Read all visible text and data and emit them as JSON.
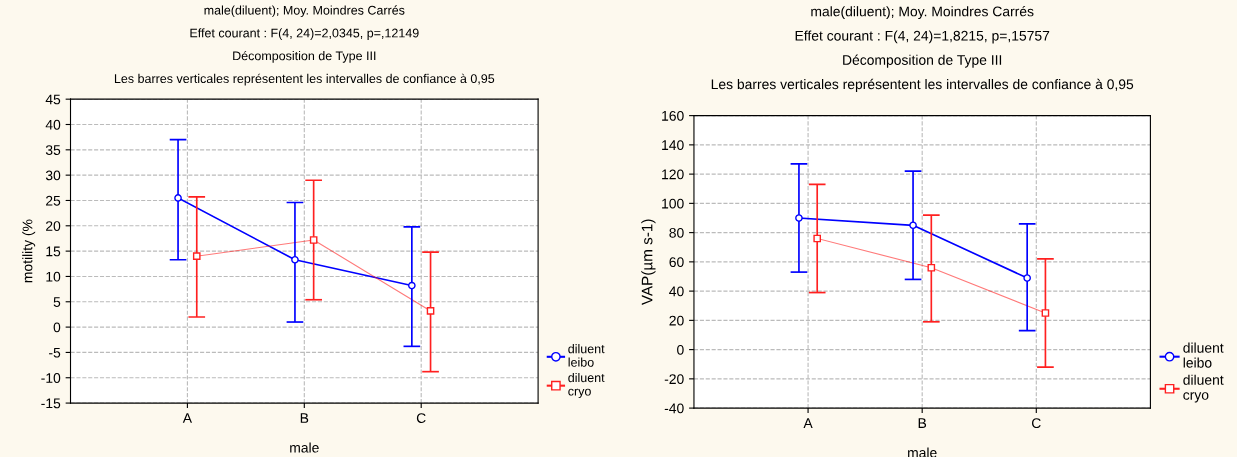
{
  "chart_data": [
    {
      "type": "line",
      "title": "male(diluent); Moy. Moindres Carrés",
      "subtitle": "Effet courant : F(4, 24)=2,0345, p=,12149",
      "annotations": [
        "Décomposition de Type III",
        "Les barres verticales représentent les intervalles de confiance à 0,95"
      ],
      "xlabel": "male",
      "ylabel": "motility (%",
      "categories": [
        "A",
        "B",
        "C"
      ],
      "ylim": [
        -15,
        45
      ],
      "yticks": [
        -15,
        -10,
        -5,
        0,
        5,
        10,
        15,
        20,
        25,
        30,
        35,
        40,
        45
      ],
      "grid": true,
      "legend": "bottom right",
      "line_style": "solid",
      "series": [
        {
          "name": "diluent\nleibo",
          "color": "#0000ff",
          "marker": "circle",
          "values": [
            25.5,
            13.3,
            8.2
          ],
          "errors": [
            [
              13.3,
              37
            ],
            [
              1,
              24.6
            ],
            [
              -3.8,
              19.8
            ]
          ]
        },
        {
          "name": "diluent\ncryo",
          "color": "#ff2020",
          "marker": "square",
          "values": [
            14,
            17.2,
            3.2
          ],
          "errors": [
            [
              2,
              25.7
            ],
            [
              5.4,
              29
            ],
            [
              -8.8,
              14.8
            ]
          ]
        }
      ]
    },
    {
      "type": "line",
      "title": "male(diluent); Moy. Moindres Carrés",
      "subtitle": "Effet courant : F(4, 24)=1,8215, p=,15757",
      "annotations": [
        "Décomposition de Type III",
        "Les barres verticales représentent les intervalles de confiance à 0,95"
      ],
      "xlabel": "male",
      "ylabel": "VAP(µm s-1)",
      "categories": [
        "A",
        "B",
        "C"
      ],
      "ylim": [
        -40,
        160
      ],
      "yticks": [
        -40,
        -20,
        0,
        20,
        40,
        60,
        80,
        100,
        120,
        140,
        160
      ],
      "grid": true,
      "legend": "bottom right",
      "line_style": "solid",
      "series": [
        {
          "name": "diluent\nleibo",
          "color": "#0000ff",
          "marker": "circle",
          "values": [
            90,
            85,
            49
          ],
          "errors": [
            [
              53,
              127
            ],
            [
              48,
              122
            ],
            [
              13,
              86
            ]
          ]
        },
        {
          "name": "diluent\ncryo",
          "color": "#ff2020",
          "marker": "square",
          "values": [
            76,
            56,
            25
          ],
          "errors": [
            [
              39,
              113
            ],
            [
              19,
              92
            ],
            [
              -12,
              62
            ]
          ]
        }
      ]
    }
  ]
}
